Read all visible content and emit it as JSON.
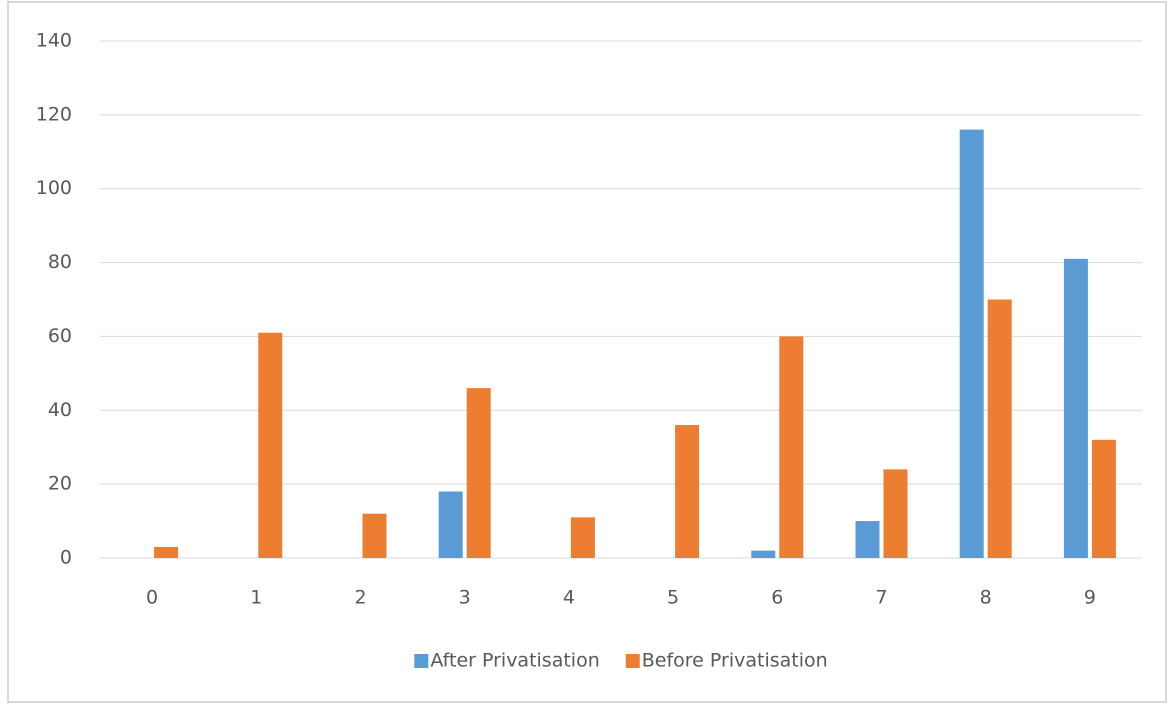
{
  "chart_data": {
    "type": "bar",
    "categories": [
      "0",
      "1",
      "2",
      "3",
      "4",
      "5",
      "6",
      "7",
      "8",
      "9"
    ],
    "series": [
      {
        "name": "After Privatisation",
        "color": "#5b9bd5",
        "values": [
          0,
          0,
          0,
          18,
          0,
          0,
          2,
          10,
          116,
          81
        ]
      },
      {
        "name": "Before Privatisation",
        "color": "#ed7d31",
        "values": [
          3,
          61,
          12,
          46,
          11,
          36,
          60,
          24,
          70,
          32
        ]
      }
    ],
    "ylim": [
      0,
      140
    ],
    "yticks": [
      0,
      20,
      40,
      60,
      80,
      100,
      120,
      140
    ],
    "grid": true,
    "legend": "bottom"
  }
}
